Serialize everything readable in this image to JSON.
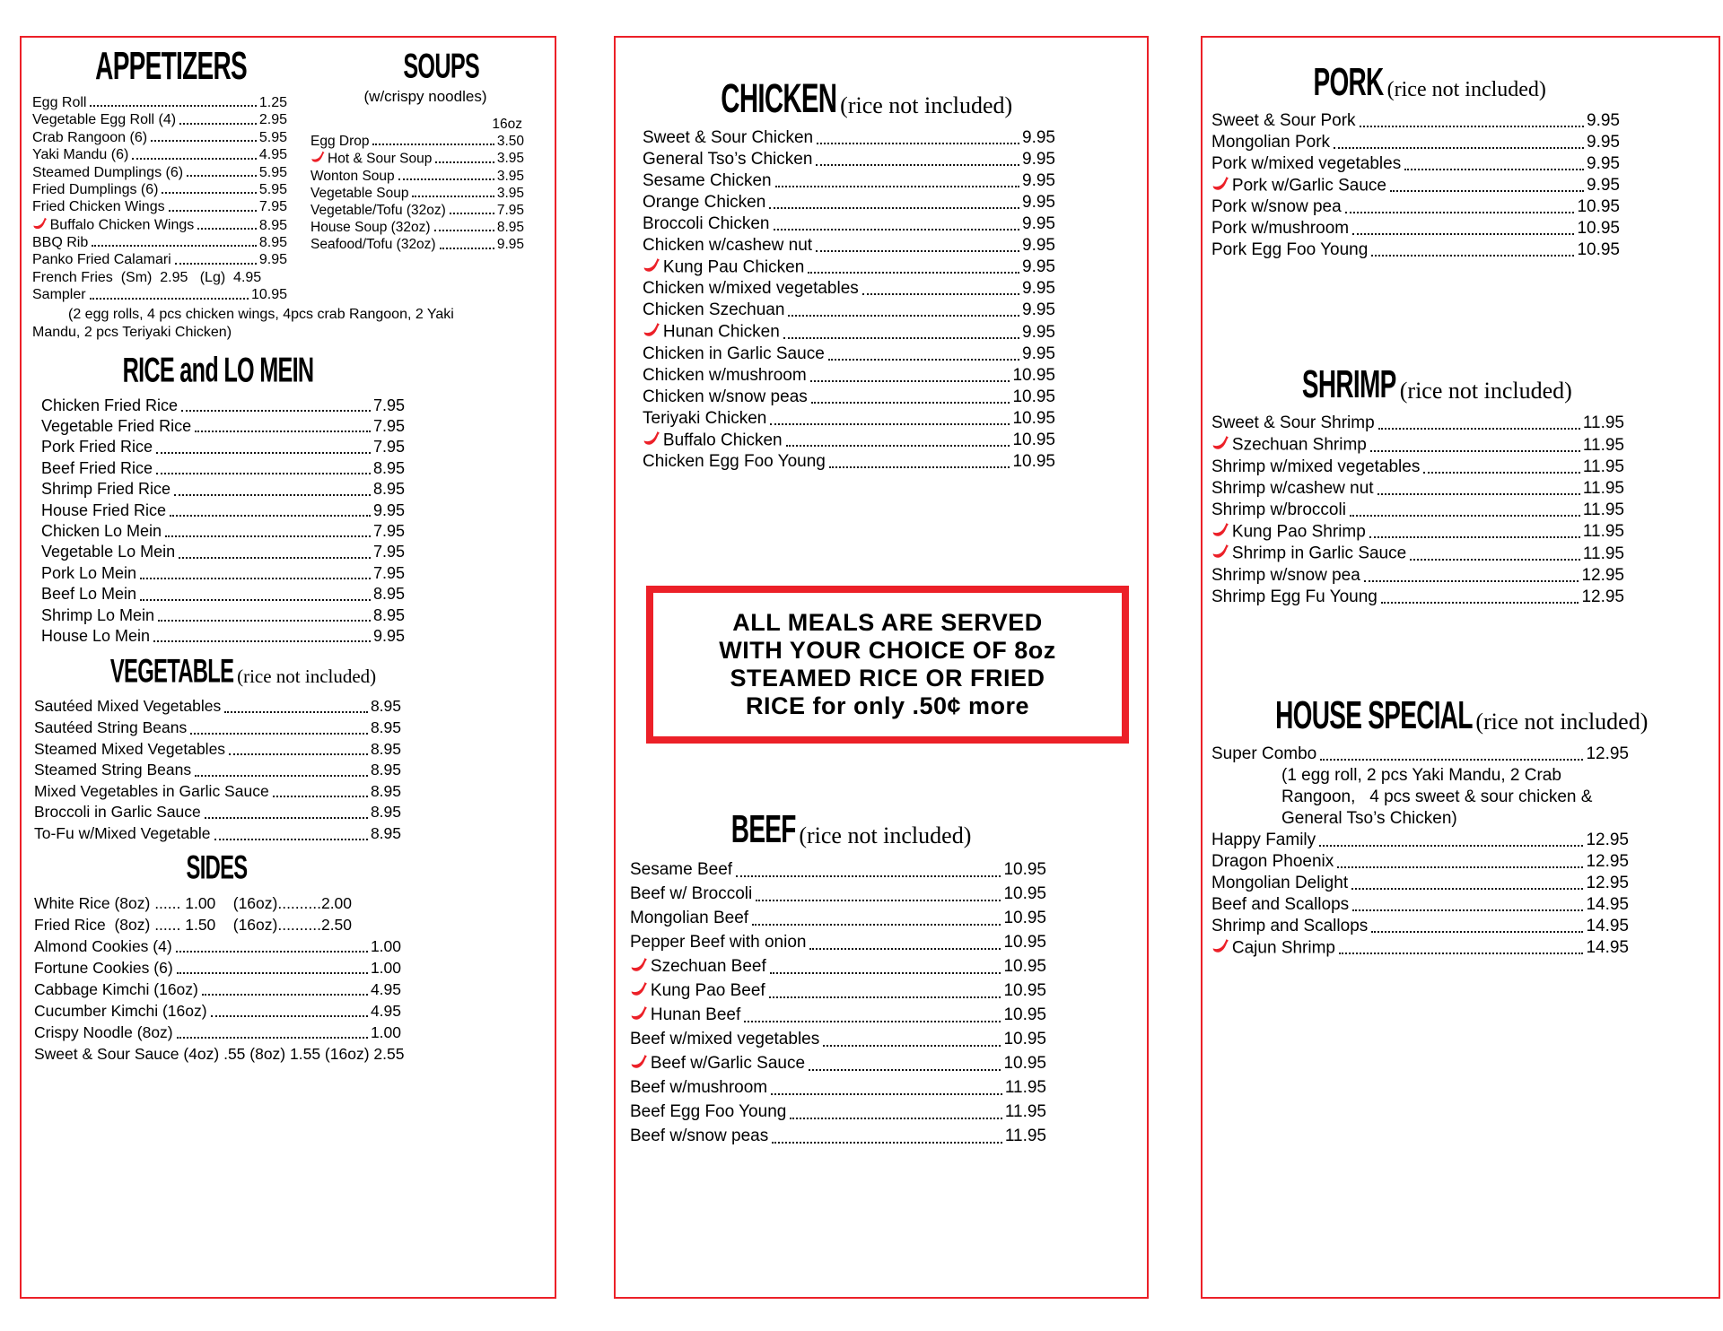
{
  "theme": {
    "accent_red": "#ec2028",
    "text_color": "#000000",
    "background": "#ffffff"
  },
  "icons": {
    "spicy": "chili-pepper-icon"
  },
  "panels": {
    "left": {
      "appetizers": {
        "id": "appetizers",
        "title": "APPETIZERS",
        "items": [
          {
            "name": "Egg Roll",
            "price": "1.25"
          },
          {
            "name": "Vegetable Egg Roll (4)",
            "price": "2.95"
          },
          {
            "name": "Crab Rangoon (6)",
            "price": "5.95"
          },
          {
            "name": "Yaki Mandu (6)",
            "price": "4.95"
          },
          {
            "name": "Steamed Dumplings (6)",
            "price": "5.95"
          },
          {
            "name": "Fried Dumplings (6)",
            "price": "5.95"
          },
          {
            "name": "Fried Chicken Wings",
            "price": "7.95"
          },
          {
            "name": "Buffalo Chicken Wings",
            "price": "8.95",
            "spicy": true
          },
          {
            "name": "BBQ Rib",
            "price": "8.95"
          },
          {
            "name": "Panko Fried Calamari",
            "price": "9.95"
          },
          {
            "type": "plain",
            "text": "French Fries  (Sm)  2.95   (Lg)  4.95"
          },
          {
            "name": "Sampler",
            "price": "10.95"
          }
        ]
      },
      "soups": {
        "id": "soups",
        "title": "SOUPS",
        "subtitle": "(w/crispy noodles)",
        "size_label": "16oz",
        "items": [
          {
            "name": "Egg Drop",
            "price": "3.50"
          },
          {
            "name": "Hot & Sour Soup",
            "price": "3.95",
            "spicy": true
          },
          {
            "name": "Wonton Soup",
            "price": "3.95"
          },
          {
            "name": "Vegetable Soup",
            "price": "3.95"
          },
          {
            "name": "Vegetable/Tofu (32oz)",
            "price": "7.95"
          },
          {
            "name": "House Soup (32oz)",
            "price": "8.95"
          },
          {
            "name": "Seafood/Tofu (32oz)",
            "price": "9.95"
          }
        ]
      },
      "sampler_note": "(2 egg rolls, 4 pcs chicken wings, 4pcs crab Rangoon, 2 Yaki Mandu, 2 pcs Teriyaki Chicken)",
      "sections": [
        {
          "id": "rice-lo-mein",
          "title": "RICE and LO MEIN",
          "items": [
            {
              "name": "Chicken Fried Rice",
              "price": "7.95"
            },
            {
              "name": "Vegetable Fried Rice",
              "price": "7.95"
            },
            {
              "name": "Pork Fried Rice",
              "price": "7.95"
            },
            {
              "name": "Beef Fried Rice",
              "price": "8.95"
            },
            {
              "name": "Shrimp Fried Rice",
              "price": "8.95"
            },
            {
              "name": "House Fried Rice",
              "price": "9.95"
            },
            {
              "name": "Chicken Lo Mein",
              "price": "7.95"
            },
            {
              "name": "Vegetable Lo Mein",
              "price": "7.95"
            },
            {
              "name": "Pork Lo Mein",
              "price": "7.95"
            },
            {
              "name": "Beef Lo Mein",
              "price": "8.95"
            },
            {
              "name": "Shrimp Lo Mein",
              "price": "8.95"
            },
            {
              "name": "House Lo Mein",
              "price": "9.95"
            }
          ]
        },
        {
          "id": "vegetable",
          "title": "VEGETABLE",
          "subtitle": "(rice not included)",
          "items": [
            {
              "name": "Sautéed Mixed Vegetables",
              "price": "8.95"
            },
            {
              "name": "Sautéed String Beans",
              "price": "8.95"
            },
            {
              "name": "Steamed Mixed Vegetables",
              "price": "8.95"
            },
            {
              "name": "Steamed String Beans",
              "price": "8.95"
            },
            {
              "name": "Mixed Vegetables in Garlic Sauce",
              "price": "8.95"
            },
            {
              "name": "Broccoli in Garlic Sauce",
              "price": "8.95"
            },
            {
              "name": "To-Fu w/Mixed Vegetable",
              "price": "8.95"
            }
          ]
        },
        {
          "id": "sides",
          "title": "SIDES",
          "items": [
            {
              "type": "plain",
              "text": "White Rice (8oz) ...... 1.00    (16oz)..........2.00"
            },
            {
              "type": "plain",
              "text": "Fried Rice  (8oz) ...... 1.50    (16oz)..........2.50"
            },
            {
              "name": "Almond Cookies (4)",
              "price": "1.00"
            },
            {
              "name": "Fortune Cookies (6)",
              "price": "1.00"
            },
            {
              "name": "Cabbage Kimchi (16oz)",
              "price": "4.95"
            },
            {
              "name": "Cucumber Kimchi (16oz)",
              "price": "4.95"
            },
            {
              "name": "Crispy Noodle (8oz)",
              "price": "1.00"
            },
            {
              "type": "plain",
              "text": "Sweet & Sour Sauce (4oz) .55 (8oz) 1.55 (16oz) 2.55"
            }
          ]
        }
      ]
    },
    "middle": {
      "sections_top": [
        {
          "id": "chicken",
          "title": "CHICKEN",
          "subtitle": "(rice not included)",
          "items": [
            {
              "name": "Sweet & Sour Chicken",
              "price": "9.95"
            },
            {
              "name": "General Tso’s Chicken",
              "price": "9.95"
            },
            {
              "name": "Sesame Chicken",
              "price": "9.95"
            },
            {
              "name": "Orange Chicken",
              "price": "9.95"
            },
            {
              "name": "Broccoli Chicken",
              "price": "9.95"
            },
            {
              "name": "Chicken w/cashew nut",
              "price": "9.95"
            },
            {
              "name": "Kung Pau Chicken",
              "price": "9.95",
              "spicy": true
            },
            {
              "name": "Chicken w/mixed vegetables",
              "price": "9.95"
            },
            {
              "name": "Chicken Szechuan",
              "price": "9.95"
            },
            {
              "name": "Hunan Chicken",
              "price": "9.95",
              "spicy": true
            },
            {
              "name": "Chicken in Garlic Sauce",
              "price": "9.95"
            },
            {
              "name": "Chicken w/mushroom",
              "price": "10.95"
            },
            {
              "name": "Chicken w/snow peas",
              "price": "10.95"
            },
            {
              "name": "Teriyaki Chicken",
              "price": "10.95"
            },
            {
              "name": "Buffalo Chicken",
              "price": "10.95",
              "spicy": true
            },
            {
              "name": "Chicken Egg Foo Young",
              "price": "10.95"
            }
          ]
        }
      ],
      "banner": {
        "lines": [
          "ALL MEALS ARE SERVED",
          "WITH YOUR CHOICE OF 8oz",
          "STEAMED RICE OR FRIED",
          "RICE for only .50¢ more"
        ]
      },
      "sections_bottom": [
        {
          "id": "beef",
          "title": "BEEF",
          "subtitle": "(rice not included)",
          "items": [
            {
              "name": "Sesame Beef",
              "price": "10.95"
            },
            {
              "name": "Beef w/ Broccoli",
              "price": "10.95"
            },
            {
              "name": "Mongolian Beef",
              "price": "10.95"
            },
            {
              "name": "Pepper Beef with onion",
              "price": "10.95"
            },
            {
              "name": "Szechuan Beef",
              "price": "10.95",
              "spicy": true
            },
            {
              "name": "Kung Pao Beef",
              "price": "10.95",
              "spicy": true
            },
            {
              "name": "Hunan Beef",
              "price": "10.95",
              "spicy": true
            },
            {
              "name": "Beef w/mixed vegetables",
              "price": "10.95"
            },
            {
              "name": "Beef w/Garlic Sauce",
              "price": "10.95",
              "spicy": true
            },
            {
              "name": "Beef w/mushroom",
              "price": "11.95"
            },
            {
              "name": "Beef Egg Foo Young",
              "price": "11.95"
            },
            {
              "name": "Beef w/snow peas",
              "price": "11.95"
            }
          ]
        }
      ]
    },
    "right": {
      "sections": [
        {
          "id": "pork",
          "title": "PORK",
          "subtitle": "(rice not included)",
          "items": [
            {
              "name": "Sweet & Sour Pork",
              "price": "9.95"
            },
            {
              "name": "Mongolian Pork",
              "price": "9.95"
            },
            {
              "name": "Pork w/mixed vegetables",
              "price": "9.95"
            },
            {
              "name": "Pork w/Garlic Sauce",
              "price": "9.95",
              "spicy": true
            },
            {
              "name": "Pork w/snow pea",
              "price": "10.95"
            },
            {
              "name": "Pork w/mushroom",
              "price": "10.95"
            },
            {
              "name": "Pork Egg Foo Young",
              "price": "10.95"
            }
          ]
        },
        {
          "id": "shrimp",
          "title": "SHRIMP",
          "subtitle": "(rice not included)",
          "items": [
            {
              "name": "Sweet & Sour Shrimp",
              "price": "11.95"
            },
            {
              "name": "Szechuan Shrimp",
              "price": "11.95",
              "spicy": true
            },
            {
              "name": "Shrimp w/mixed vegetables",
              "price": "11.95"
            },
            {
              "name": "Shrimp w/cashew nut",
              "price": "11.95"
            },
            {
              "name": "Shrimp w/broccoli",
              "price": "11.95"
            },
            {
              "name": "Kung Pao Shrimp",
              "price": "11.95",
              "spicy": true
            },
            {
              "name": "Shrimp in Garlic Sauce",
              "price": "11.95",
              "spicy": true
            },
            {
              "name": "Shrimp w/snow pea",
              "price": "12.95"
            },
            {
              "name": "Shrimp Egg Fu Young",
              "price": "12.95"
            }
          ]
        },
        {
          "id": "house-special",
          "title": "HOUSE SPECIAL",
          "subtitle": "(rice not included)",
          "items": [
            {
              "name": "Super Combo",
              "price": "12.95"
            },
            {
              "type": "note",
              "text": "(1 egg roll, 2 pcs Yaki Mandu, 2 Crab Rangoon,   4 pcs sweet & sour chicken & General Tso’s Chicken)"
            },
            {
              "name": "Happy Family",
              "price": "12.95"
            },
            {
              "name": "Dragon Phoenix",
              "price": "12.95"
            },
            {
              "name": "Mongolian  Delight",
              "price": "12.95"
            },
            {
              "name": "Beef and Scallops",
              "price": "14.95"
            },
            {
              "name": "Shrimp and Scallops",
              "price": "14.95"
            },
            {
              "name": "Cajun Shrimp",
              "price": "14.95",
              "spicy": true
            }
          ]
        }
      ]
    }
  }
}
